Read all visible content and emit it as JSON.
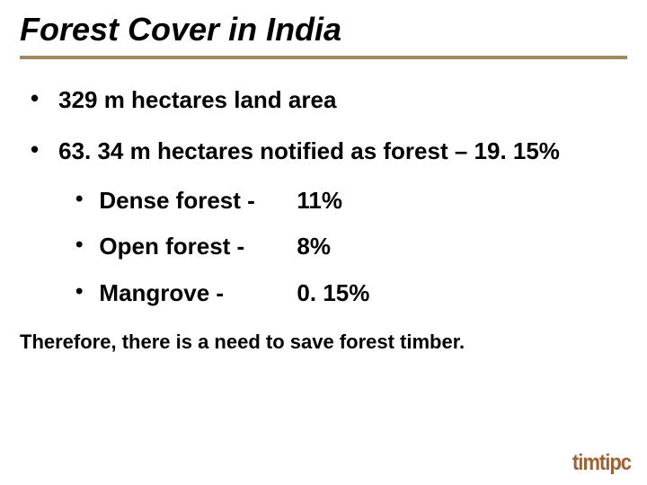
{
  "title": "Forest Cover in India",
  "bullets": [
    "329 m hectares land area",
    "63. 34 m hectares notified as forest – 19. 15%"
  ],
  "subBullets": [
    {
      "label": "Dense forest -",
      "value": "11%"
    },
    {
      "label": "Open forest   -",
      "value": "8%"
    },
    {
      "label": "Mangrove      -",
      "value": "0. 15%"
    }
  ],
  "footer": "Therefore, there is a need to save forest timber.",
  "logo": "timtipc",
  "colors": {
    "underline": "#a18a5a",
    "text": "#000000",
    "background": "#ffffff",
    "logo": "#a06030"
  },
  "typography": {
    "title_fontsize": 36,
    "bullet_fontsize": 26,
    "footer_fontsize": 22
  }
}
